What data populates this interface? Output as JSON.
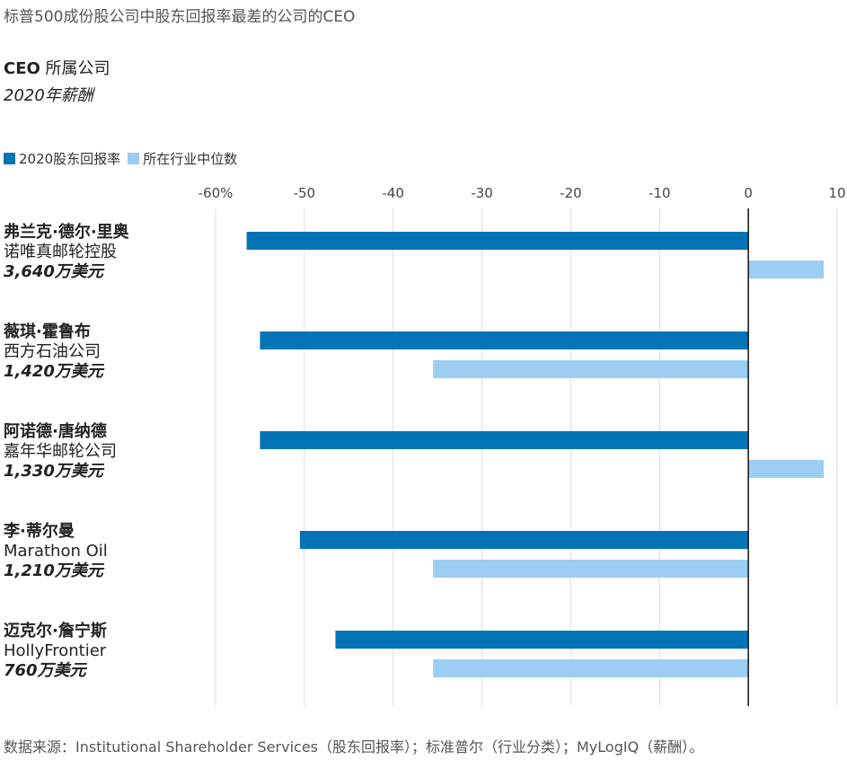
{
  "header": {
    "title": "标普500成份股公司中股东回报率最差的公司的CEO",
    "subtitle_bold": "CEO",
    "subtitle_rest": " 所属公司",
    "subtitle_italic": "2020年薪酬"
  },
  "colors": {
    "return": "#0274b6",
    "median": "#9ccdf2",
    "grid": "#dddddd",
    "zero": "#111111"
  },
  "rows": [
    {
      "name": "弗兰克·德尔·里奥",
      "company": "诺唯真邮轮控股",
      "pay": "3,640万美元"
    },
    {
      "name": "薇琪·霍鲁布",
      "company": "西方石油公司",
      "pay": "1,420万美元"
    },
    {
      "name": "阿诺德·唐纳德",
      "company": "嘉年华邮轮公司",
      "pay": "1,330万美元"
    },
    {
      "name": "李·蒂尔曼",
      "company": "Marathon Oil",
      "pay": "1,210万美元"
    },
    {
      "name": "迈克尔·詹宁斯",
      "company": "HollyFrontier",
      "pay": "760万美元"
    }
  ],
  "chart_data": {
    "type": "bar",
    "orientation": "horizontal",
    "categories": [
      "弗兰克·德尔·里奥",
      "薇琪·霍鲁布",
      "阿诺德·唐纳德",
      "李·蒂尔曼",
      "迈克尔·詹宁斯"
    ],
    "series": [
      {
        "name": "2020股东回报率",
        "values": [
          -56.5,
          -55,
          -55,
          -50.5,
          -46.5
        ]
      },
      {
        "name": "所在行业中位数",
        "values": [
          8.5,
          -35.5,
          8.5,
          -35.5,
          -35.5
        ]
      }
    ],
    "xlim": [
      -60,
      10
    ],
    "xticks": [
      -60,
      -50,
      -40,
      -30,
      -20,
      -10,
      0,
      10
    ],
    "xtick_labels": [
      "-60%",
      "-50",
      "-40",
      "-30",
      "-20",
      "-10",
      "0",
      "10"
    ],
    "grid": true,
    "legend_position": "top-left"
  },
  "source": "数据来源：Institutional Shareholder Services（股东回报率）；标准普尔（行业分类）；MyLogIQ（薪酬）。"
}
